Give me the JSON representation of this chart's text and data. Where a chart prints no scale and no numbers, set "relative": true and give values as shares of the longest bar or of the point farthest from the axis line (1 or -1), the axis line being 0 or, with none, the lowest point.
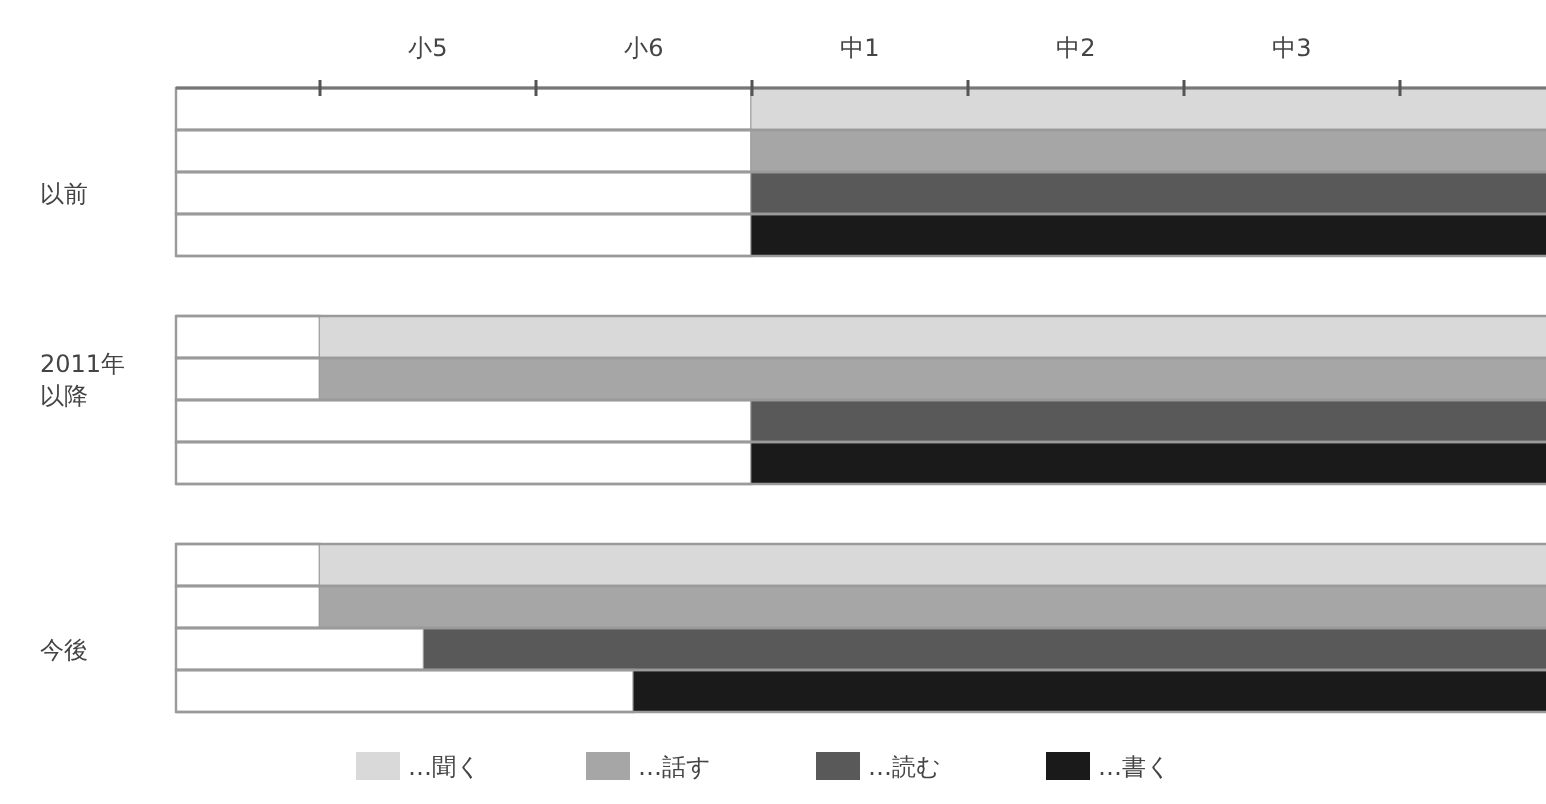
{
  "chart_data": {
    "type": "bar",
    "orientation": "horizontal",
    "stacked": true,
    "relative": true,
    "categories": [
      null,
      null,
      "以前",
      null,
      null,
      null,
      "2011年以降",
      null,
      null,
      null,
      null,
      null,
      "今後",
      null
    ],
    "series": [
      {
        "color": "#ffffff",
        "values": [
          0.42,
          0.42,
          0.42,
          0.42,
          null,
          0.105,
          0.105,
          0.42,
          0.42,
          null,
          0.105,
          0.105,
          0.181,
          0.334
        ]
      },
      {
        "name": "…聞く",
        "color": "#d9d9d9",
        "values": [
          0.58,
          null,
          null,
          null,
          null,
          0.895,
          null,
          null,
          null,
          null,
          0.895,
          null,
          null,
          null
        ]
      },
      {
        "name": "…話す",
        "color": "#a6a6a6",
        "values": [
          null,
          0.58,
          null,
          null,
          null,
          null,
          0.895,
          null,
          null,
          null,
          null,
          0.895,
          null,
          null
        ]
      },
      {
        "name": "…読む",
        "color": "#595959",
        "values": [
          null,
          null,
          0.58,
          null,
          null,
          null,
          null,
          0.58,
          null,
          null,
          null,
          null,
          0.819,
          null
        ]
      },
      {
        "name": "…書く",
        "color": "#1a1a1a",
        "values": [
          null,
          null,
          null,
          0.58,
          null,
          null,
          null,
          null,
          0.58,
          null,
          null,
          null,
          null,
          0.666
        ]
      }
    ],
    "annotations": [
      "小5",
      "小6",
      "中1",
      "中2",
      "中3"
    ],
    "grid": "y",
    "legend": "bottom"
  }
}
